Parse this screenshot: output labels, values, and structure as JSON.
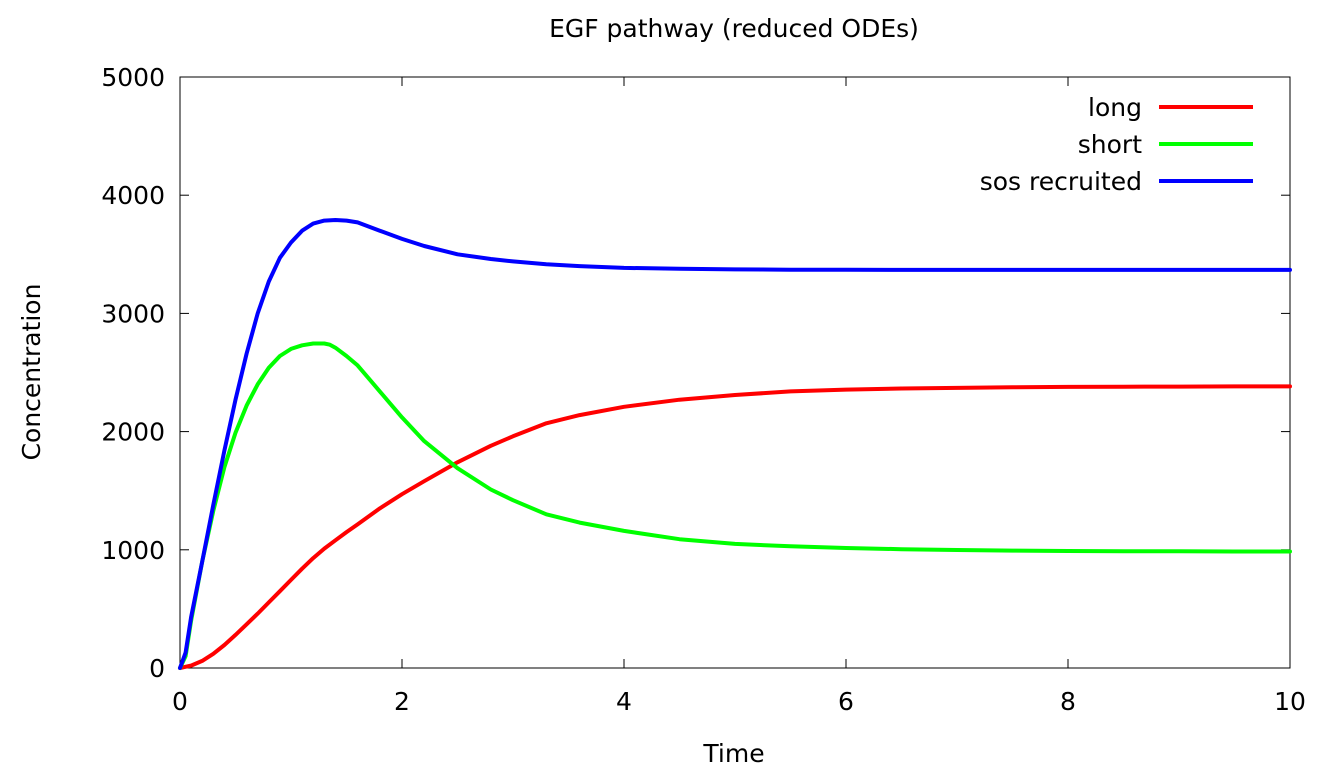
{
  "chart_data": {
    "type": "line",
    "title": "EGF pathway (reduced ODEs)",
    "xlabel": "Time",
    "ylabel": "Concentration",
    "xlim": [
      0,
      10
    ],
    "ylim": [
      0,
      5000
    ],
    "xticks": [
      0,
      2,
      4,
      6,
      8,
      10
    ],
    "yticks": [
      0,
      1000,
      2000,
      3000,
      4000,
      5000
    ],
    "grid": false,
    "legend_position": "top-right",
    "series": [
      {
        "name": "long",
        "color": "#ff0000",
        "x": [
          0,
          0.1,
          0.2,
          0.3,
          0.4,
          0.5,
          0.6,
          0.7,
          0.8,
          0.9,
          1.0,
          1.1,
          1.2,
          1.3,
          1.4,
          1.5,
          1.6,
          1.8,
          2.0,
          2.2,
          2.5,
          2.8,
          3.0,
          3.3,
          3.6,
          4.0,
          4.5,
          5.0,
          5.5,
          6.0,
          6.5,
          7.0,
          7.5,
          8.0,
          8.5,
          9.0,
          9.5,
          10.0
        ],
        "y": [
          0,
          20,
          60,
          120,
          195,
          280,
          370,
          460,
          555,
          650,
          745,
          840,
          930,
          1010,
          1080,
          1150,
          1215,
          1350,
          1470,
          1580,
          1740,
          1880,
          1960,
          2070,
          2140,
          2210,
          2270,
          2310,
          2340,
          2355,
          2365,
          2370,
          2375,
          2378,
          2380,
          2381,
          2382,
          2382
        ]
      },
      {
        "name": "short",
        "color": "#00ff00",
        "x": [
          0,
          0.05,
          0.1,
          0.2,
          0.3,
          0.4,
          0.5,
          0.6,
          0.7,
          0.8,
          0.9,
          1.0,
          1.1,
          1.2,
          1.3,
          1.35,
          1.4,
          1.5,
          1.6,
          1.8,
          2.0,
          2.2,
          2.5,
          2.8,
          3.0,
          3.3,
          3.6,
          4.0,
          4.5,
          5.0,
          5.5,
          6.0,
          6.5,
          7.0,
          7.5,
          8.0,
          8.5,
          9.0,
          9.5,
          10.0
        ],
        "y": [
          0,
          100,
          400,
          900,
          1330,
          1700,
          1990,
          2220,
          2400,
          2540,
          2640,
          2700,
          2730,
          2745,
          2745,
          2735,
          2710,
          2640,
          2560,
          2340,
          2120,
          1920,
          1690,
          1510,
          1420,
          1300,
          1230,
          1160,
          1090,
          1050,
          1030,
          1015,
          1005,
          998,
          993,
          990,
          988,
          987,
          986,
          986
        ]
      },
      {
        "name": "sos recruited",
        "color": "#0000ff",
        "x": [
          0,
          0.05,
          0.1,
          0.2,
          0.3,
          0.4,
          0.5,
          0.6,
          0.7,
          0.8,
          0.9,
          1.0,
          1.1,
          1.2,
          1.3,
          1.4,
          1.5,
          1.6,
          1.8,
          2.0,
          2.2,
          2.5,
          2.8,
          3.0,
          3.3,
          3.6,
          4.0,
          4.5,
          5.0,
          5.5,
          6.0,
          7.0,
          8.0,
          9.0,
          10.0
        ],
        "y": [
          0,
          130,
          430,
          900,
          1380,
          1840,
          2270,
          2660,
          3000,
          3270,
          3470,
          3600,
          3700,
          3760,
          3785,
          3790,
          3785,
          3770,
          3700,
          3630,
          3570,
          3500,
          3460,
          3440,
          3415,
          3400,
          3385,
          3378,
          3372,
          3370,
          3369,
          3368,
          3368,
          3368,
          3368
        ]
      }
    ]
  }
}
